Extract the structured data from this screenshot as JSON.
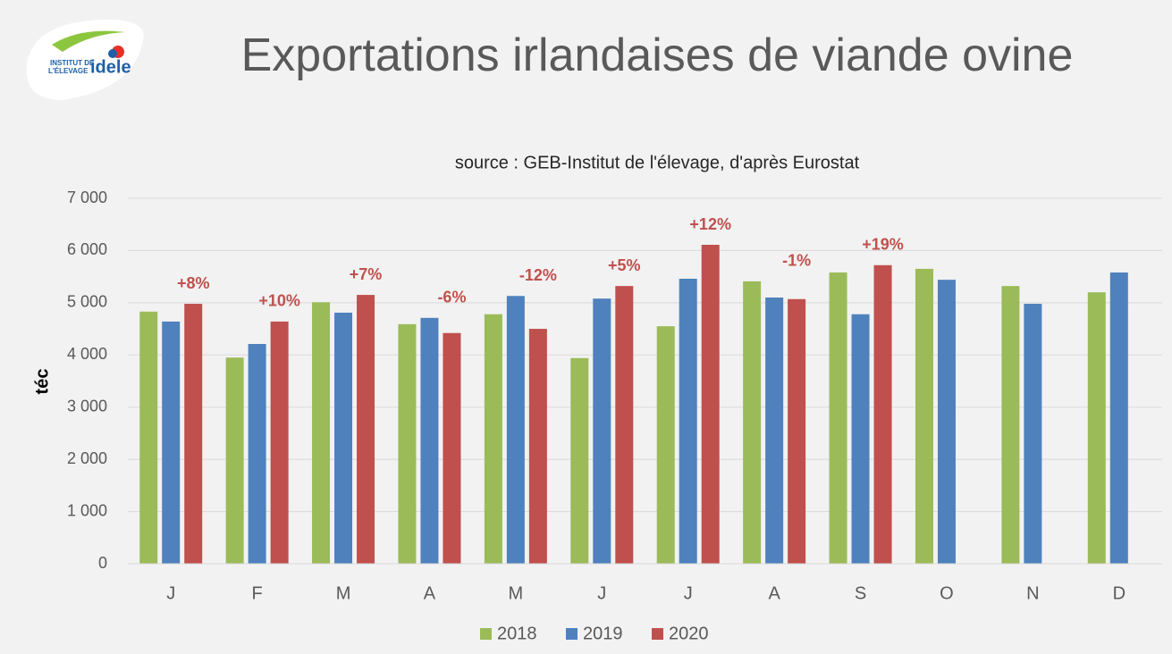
{
  "chart_data": {
    "type": "bar",
    "title": "Exportations irlandaises de viande ovine",
    "subtitle": "source : GEB-Institut de l'élevage, d'après Eurostat",
    "y_label": "téc",
    "logo": {
      "line1": "INSTITUT DE",
      "line2": "L'ÉLEVAGE",
      "brand": "idele"
    },
    "categories": [
      "J",
      "F",
      "M",
      "A",
      "M",
      "J",
      "J",
      "A",
      "S",
      "O",
      "N",
      "D"
    ],
    "series": [
      {
        "name": "2018",
        "color": "#9bbb59",
        "values": [
          4830,
          3950,
          5010,
          4590,
          4780,
          3940,
          4550,
          5410,
          5580,
          5650,
          5320,
          5200
        ]
      },
      {
        "name": "2019",
        "color": "#4f81bd",
        "values": [
          4640,
          4210,
          4810,
          4710,
          5130,
          5080,
          5460,
          5100,
          4780,
          5440,
          4980,
          5580
        ]
      },
      {
        "name": "2020",
        "color": "#c0504d",
        "values": [
          4980,
          4640,
          5150,
          4420,
          4500,
          5320,
          6110,
          5070,
          5720,
          null,
          null,
          null
        ]
      }
    ],
    "annotations": [
      "+8%",
      "+10%",
      "+7%",
      "-6%",
      "-12%",
      "+5%",
      "+12%",
      "-1%",
      "+19%",
      null,
      null,
      null
    ],
    "annotation_color": "#c0504d",
    "ylim": [
      0,
      7000
    ],
    "yticks": [
      0,
      {
        "value": 1000,
        "label": "1 000"
      },
      {
        "value": 2000,
        "label": "2 000"
      },
      {
        "value": 3000,
        "label": "3 000"
      },
      {
        "value": 4000,
        "label": "4 000"
      },
      {
        "value": 5000,
        "label": "5 000"
      },
      {
        "value": 6000,
        "label": "6 000"
      },
      {
        "value": 7000,
        "label": "7 000"
      }
    ],
    "grid": true,
    "legend": "bottom"
  }
}
